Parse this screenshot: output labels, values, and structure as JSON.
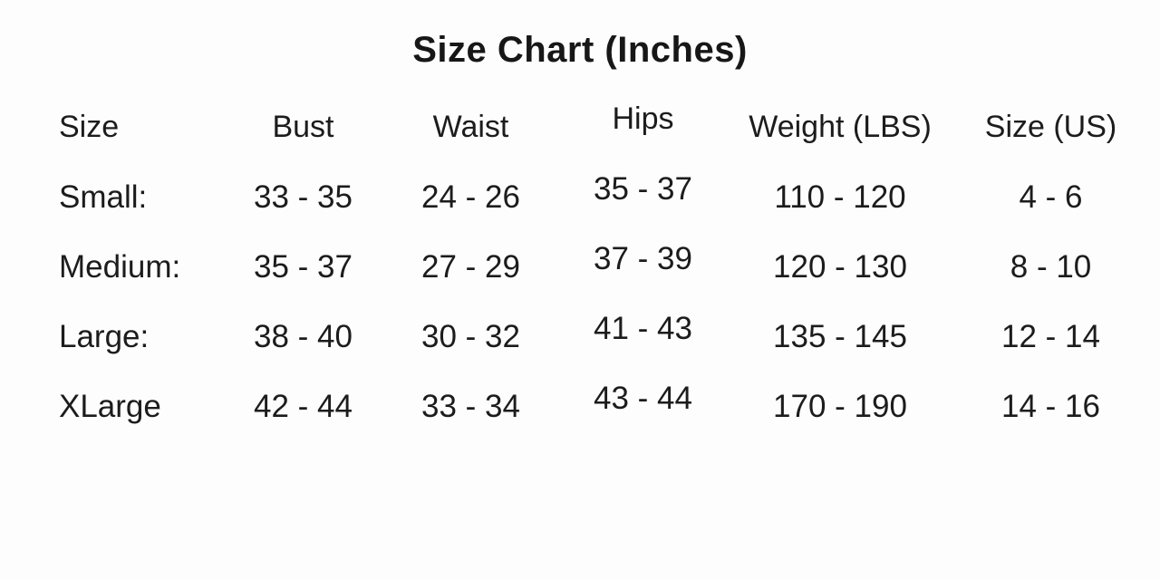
{
  "chart_data": {
    "type": "table",
    "title": "Size Chart (Inches)",
    "columns": [
      "Size",
      "Bust",
      "Waist",
      "Hips",
      "Weight (LBS)",
      "Size (US)"
    ],
    "rows": [
      [
        "Small:",
        "33 - 35",
        "24 - 26",
        "35 - 37",
        "110 - 120",
        "4 - 6"
      ],
      [
        "Medium:",
        "35 - 37",
        "27 - 29",
        "37 - 39",
        "120 - 130",
        "8 - 10"
      ],
      [
        "Large:",
        "38 - 40",
        "30 - 32",
        "41 - 43",
        "135 - 145",
        "12 - 14"
      ],
      [
        "XLarge",
        "42 - 44",
        "33 - 34",
        "43 - 44",
        "170 - 190",
        "14 - 16"
      ]
    ],
    "layout": {
      "background": "#fdfdfd",
      "text_color": "#1c1c1c",
      "title_centered": true,
      "first_column_align": "left",
      "other_columns_align": "center"
    }
  }
}
